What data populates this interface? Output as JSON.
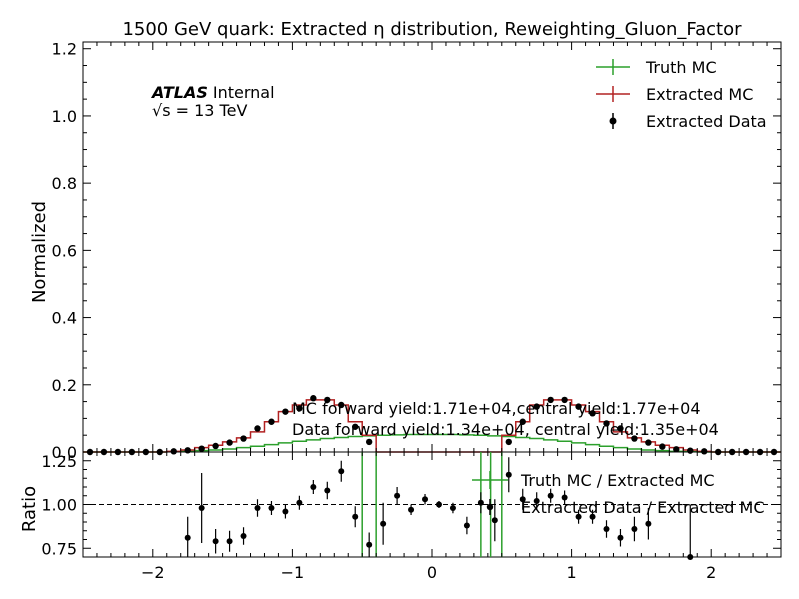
{
  "chart_data": {
    "type": "histogram-with-ratio",
    "title": "1500 GeV quark: Extracted η distribution, Reweighting_Gluon_Factor",
    "xlabel": "",
    "xlim": [
      -2.5,
      2.5
    ],
    "x_ticks": [
      -2,
      -1,
      0,
      1,
      2
    ],
    "x_tick_labels": [
      "−2",
      "−1",
      "0",
      "1",
      "2"
    ],
    "bin_edges": [
      -2.5,
      -2.4,
      -2.3,
      -2.2,
      -2.1,
      -2.0,
      -1.9,
      -1.8,
      -1.7,
      -1.6,
      -1.5,
      -1.4,
      -1.3,
      -1.2,
      -1.1,
      -1.0,
      -0.9,
      -0.8,
      -0.7,
      -0.6,
      -0.5,
      -0.4,
      -0.3,
      -0.2,
      -0.1,
      0.0,
      0.1,
      0.2,
      0.3,
      0.4,
      0.5,
      0.6,
      0.7,
      0.8,
      0.9,
      1.0,
      1.1,
      1.2,
      1.3,
      1.4,
      1.5,
      1.6,
      1.7,
      1.8,
      1.9,
      2.0,
      2.1,
      2.2,
      2.3,
      2.4,
      2.5
    ],
    "main": {
      "ylabel": "Normalized",
      "ylim": [
        0,
        1.22
      ],
      "y_ticks": [
        0.0,
        0.2,
        0.4,
        0.6,
        0.8,
        1.0,
        1.2
      ],
      "y_tick_labels": [
        "0.0",
        "0.2",
        "0.4",
        "0.6",
        "0.8",
        "1.0",
        "1.2"
      ],
      "series": [
        {
          "name": "Truth MC",
          "style": "step",
          "color": "#2ca02c",
          "values": [
            0,
            0,
            0,
            0,
            0,
            0,
            0.001,
            0.002,
            0.004,
            0.006,
            0.009,
            0.013,
            0.017,
            0.022,
            0.027,
            0.032,
            0.036,
            0.04,
            0.043,
            0.046,
            0.048,
            0.05,
            0.051,
            0.052,
            0.052,
            0.052,
            0.052,
            0.051,
            0.05,
            0.048,
            0.046,
            0.043,
            0.04,
            0.036,
            0.032,
            0.027,
            0.022,
            0.017,
            0.013,
            0.009,
            0.006,
            0.004,
            0.002,
            0.001,
            0,
            0,
            0,
            0,
            0,
            0
          ]
        },
        {
          "name": "Extracted MC",
          "style": "step",
          "color": "#b22222",
          "values": [
            0,
            0,
            0,
            0,
            0,
            0,
            0.002,
            0.006,
            0.013,
            0.02,
            0.03,
            0.042,
            0.06,
            0.09,
            0.12,
            0.14,
            0.155,
            0.155,
            0.14,
            0.09,
            0.05,
            0,
            0,
            0,
            0,
            0,
            0,
            0,
            0,
            0,
            0.05,
            0.09,
            0.14,
            0.155,
            0.155,
            0.14,
            0.12,
            0.09,
            0.06,
            0.042,
            0.03,
            0.02,
            0.013,
            0.006,
            0.002,
            0,
            0,
            0,
            0,
            0
          ]
        },
        {
          "name": "Extracted Data",
          "style": "points",
          "color": "#000000",
          "values": [
            0,
            0,
            0,
            0,
            0,
            0,
            0.002,
            0.005,
            0.01,
            0.018,
            0.028,
            0.04,
            0.07,
            0.09,
            0.12,
            0.13,
            0.16,
            0.155,
            0.14,
            0.075,
            0.03,
            null,
            null,
            null,
            null,
            null,
            null,
            null,
            null,
            null,
            0.03,
            0.09,
            0.135,
            0.155,
            0.155,
            0.135,
            0.115,
            0.085,
            0.07,
            0.04,
            0.028,
            0.016,
            0.008,
            0.004,
            0.002,
            0,
            0,
            0,
            0,
            0
          ]
        }
      ],
      "legend": {
        "placement": "top-right",
        "items": [
          {
            "label": "Truth MC",
            "marker": "errorbar-line",
            "color": "#2ca02c"
          },
          {
            "label": "Extracted MC",
            "marker": "errorbar-line",
            "color": "#b22222"
          },
          {
            "label": "Extracted Data",
            "marker": "errorbar-point",
            "color": "#000000"
          }
        ]
      },
      "annotations": {
        "atlas": "ATLAS",
        "atlas_suffix": "Internal",
        "energy": "√s =  13 TeV",
        "mc_yield": "MC forward yield:1.71e+04,central yield:1.77e+04",
        "data_yield": "Data forward yield:1.34e+04, central yield:1.35e+04"
      }
    },
    "ratio": {
      "ylabel": "Ratio",
      "ylim": [
        0.7,
        1.3
      ],
      "y_ticks": [
        0.75,
        1.0,
        1.25
      ],
      "y_tick_labels": [
        "0.75",
        "1.00",
        "1.25"
      ],
      "reference_line": 1.0,
      "truth_over_extracted": [
        {
          "x": -0.5,
          "y": 1.0,
          "err": 0.6
        },
        {
          "x": -0.4,
          "y": 1.0,
          "err": 0.6
        },
        {
          "x": 0.35,
          "y": 1.0,
          "err": 0.6
        },
        {
          "x": 0.42,
          "y": 1.0,
          "err": 0.6
        },
        {
          "x": 0.5,
          "y": 1.0,
          "err": 0.6
        }
      ],
      "data_over_extracted": [
        {
          "x": -1.75,
          "y": 0.81,
          "err": 0.12
        },
        {
          "x": -1.65,
          "y": 0.98,
          "err": 0.2
        },
        {
          "x": -1.55,
          "y": 0.79,
          "err": 0.07
        },
        {
          "x": -1.45,
          "y": 0.79,
          "err": 0.06
        },
        {
          "x": -1.35,
          "y": 0.82,
          "err": 0.05
        },
        {
          "x": -1.25,
          "y": 0.98,
          "err": 0.05
        },
        {
          "x": -1.15,
          "y": 0.98,
          "err": 0.04
        },
        {
          "x": -1.05,
          "y": 0.96,
          "err": 0.04
        },
        {
          "x": -0.95,
          "y": 1.01,
          "err": 0.04
        },
        {
          "x": -0.85,
          "y": 1.1,
          "err": 0.04
        },
        {
          "x": -0.75,
          "y": 1.08,
          "err": 0.05
        },
        {
          "x": -0.65,
          "y": 1.19,
          "err": 0.06
        },
        {
          "x": -0.55,
          "y": 0.93,
          "err": 0.06
        },
        {
          "x": -0.45,
          "y": 0.77,
          "err": 0.07
        },
        {
          "x": -0.35,
          "y": 0.89,
          "err": 0.12
        },
        {
          "x": -0.25,
          "y": 1.05,
          "err": 0.05
        },
        {
          "x": -0.15,
          "y": 0.97,
          "err": 0.03
        },
        {
          "x": -0.05,
          "y": 1.03,
          "err": 0.03
        },
        {
          "x": 0.05,
          "y": 1.0,
          "err": 0.02
        },
        {
          "x": 0.15,
          "y": 0.98,
          "err": 0.03
        },
        {
          "x": 0.25,
          "y": 0.88,
          "err": 0.05
        },
        {
          "x": 0.35,
          "y": 1.01,
          "err": 0.06
        },
        {
          "x": 0.45,
          "y": 0.91,
          "err": 0.12
        },
        {
          "x": 0.55,
          "y": 1.17,
          "err": 0.1
        },
        {
          "x": 0.65,
          "y": 1.03,
          "err": 0.06
        },
        {
          "x": 0.75,
          "y": 1.02,
          "err": 0.05
        },
        {
          "x": 0.85,
          "y": 1.05,
          "err": 0.04
        },
        {
          "x": 0.95,
          "y": 1.04,
          "err": 0.04
        },
        {
          "x": 1.05,
          "y": 0.93,
          "err": 0.04
        },
        {
          "x": 1.15,
          "y": 0.93,
          "err": 0.04
        },
        {
          "x": 1.25,
          "y": 0.86,
          "err": 0.05
        },
        {
          "x": 1.35,
          "y": 0.81,
          "err": 0.05
        },
        {
          "x": 1.45,
          "y": 0.86,
          "err": 0.07
        },
        {
          "x": 1.55,
          "y": 0.89,
          "err": 0.09
        },
        {
          "x": 1.85,
          "y": 0.7,
          "err": 0.3
        }
      ],
      "legend": {
        "items": [
          {
            "label": "Truth MC / Extracted MC",
            "color": "#2ca02c"
          },
          {
            "label": "Extracted Data / Extracted MC",
            "color": "#000000"
          }
        ]
      }
    }
  }
}
